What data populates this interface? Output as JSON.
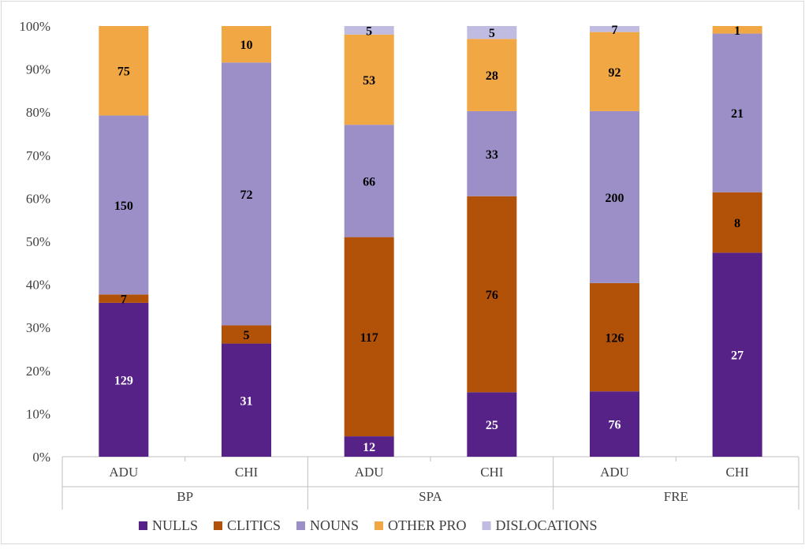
{
  "chart_data": {
    "type": "bar",
    "stacked": "percent",
    "title": "",
    "xlabel": "",
    "ylabel": "",
    "ylim": [
      0,
      100
    ],
    "y_tick_labels": [
      "0%",
      "10%",
      "20%",
      "30%",
      "40%",
      "50%",
      "60%",
      "70%",
      "80%",
      "90%",
      "100%"
    ],
    "grid": false,
    "legend_position": "bottom",
    "groups": [
      {
        "label": "BP",
        "categories": [
          "ADU",
          "CHI"
        ]
      },
      {
        "label": "SPA",
        "categories": [
          "ADU",
          "CHI"
        ]
      },
      {
        "label": "FRE",
        "categories": [
          "ADU",
          "CHI"
        ]
      }
    ],
    "categories": [
      "ADU",
      "CHI",
      "ADU",
      "CHI",
      "ADU",
      "CHI"
    ],
    "series": [
      {
        "name": "NULLS",
        "color": "#572287",
        "label_color": "#ffffff",
        "values": [
          129,
          31,
          12,
          25,
          76,
          27
        ]
      },
      {
        "name": "CLITICS",
        "color": "#b25208",
        "label_color": "#000000",
        "values": [
          7,
          5,
          117,
          76,
          126,
          8
        ]
      },
      {
        "name": "NOUNS",
        "color": "#9c8fc8",
        "label_color": "#000000",
        "values": [
          150,
          72,
          66,
          33,
          200,
          21
        ]
      },
      {
        "name": "OTHER PRO",
        "color": "#f1a743",
        "label_color": "#000000",
        "values": [
          75,
          10,
          53,
          28,
          92,
          1
        ]
      },
      {
        "name": "DISLOCATIONS",
        "color": "#c0bbe0",
        "label_color": "#000000",
        "values": [
          0,
          0,
          5,
          5,
          7,
          0
        ]
      }
    ]
  }
}
